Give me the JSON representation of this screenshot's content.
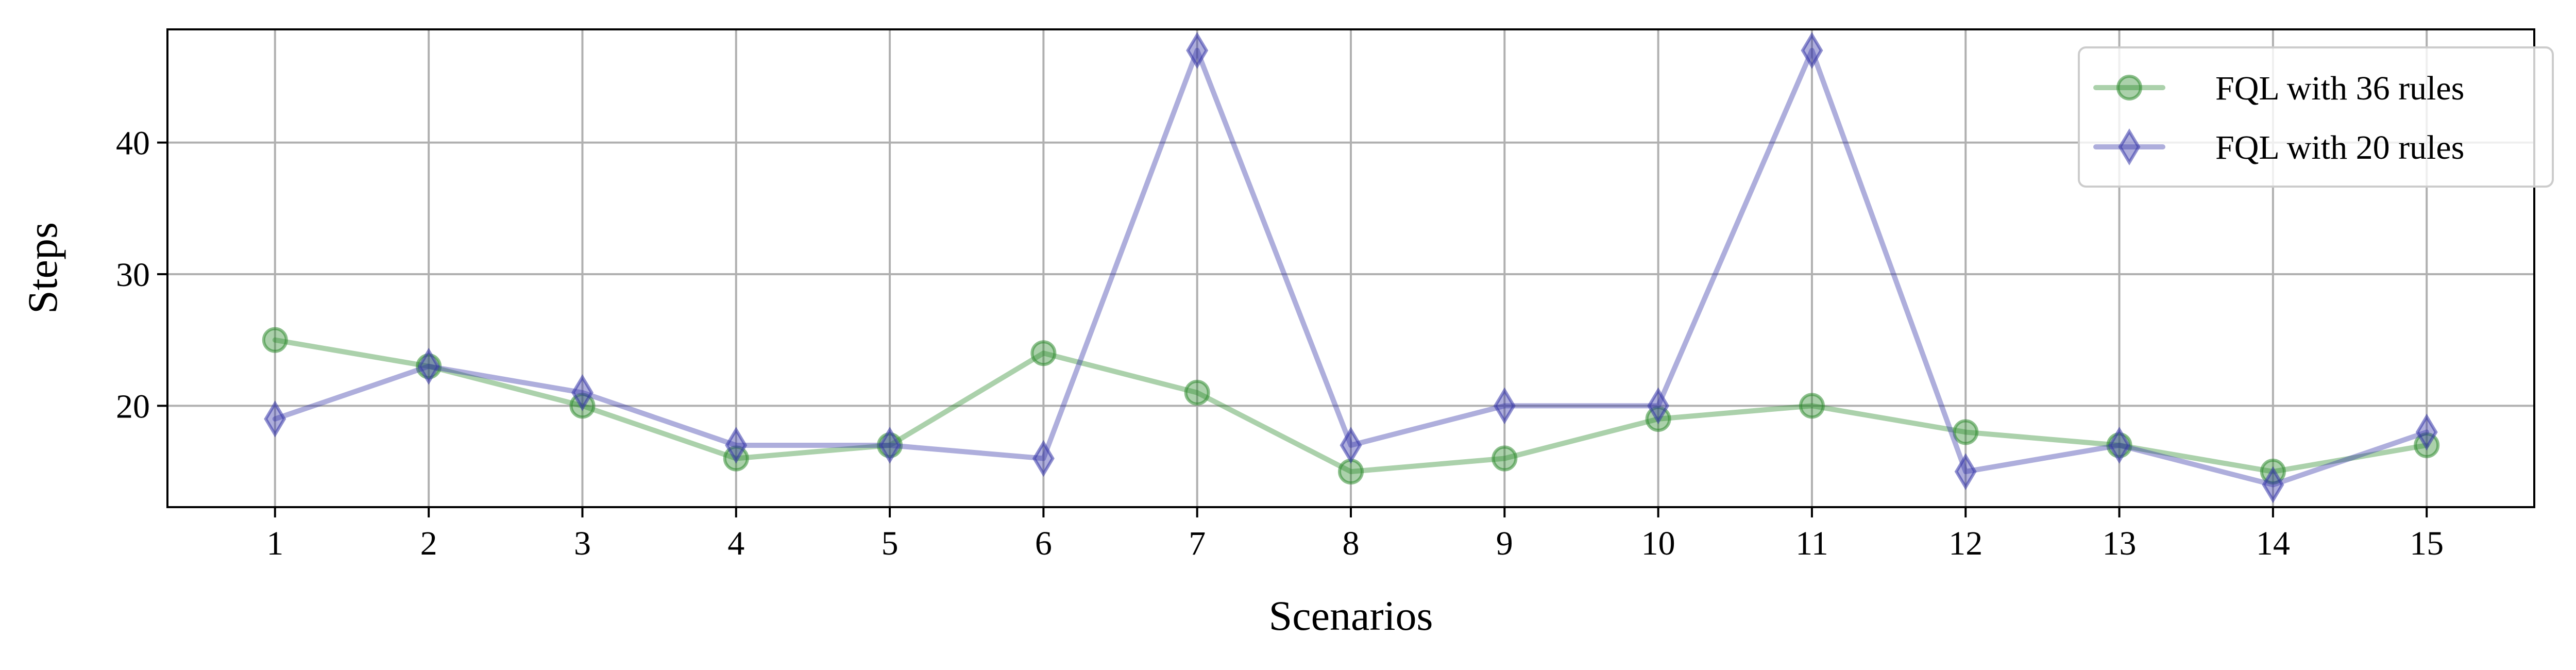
{
  "chart_data": {
    "type": "line",
    "xlabel": "Scenarios",
    "ylabel": "Steps",
    "x": [
      1,
      2,
      3,
      4,
      5,
      6,
      7,
      8,
      9,
      10,
      11,
      12,
      13,
      14,
      15
    ],
    "xlim": [
      0.3,
      15.7
    ],
    "ylim": [
      12.3,
      48.6
    ],
    "yticks": [
      20,
      30,
      40
    ],
    "grid": true,
    "legend_position": "top-right",
    "series": [
      {
        "name": "FQL with 36 rules",
        "color": "#2e8b2e",
        "marker": "circle",
        "values": [
          25,
          23,
          20,
          16,
          17,
          24,
          21,
          15,
          16,
          19,
          20,
          18,
          17,
          15,
          17
        ]
      },
      {
        "name": "FQL with 20 rules",
        "color": "#3535a8",
        "marker": "thin_diamond",
        "values": [
          19,
          23,
          21,
          17,
          17,
          16,
          47,
          17,
          20,
          20,
          47,
          15,
          17,
          14,
          18
        ]
      }
    ]
  }
}
